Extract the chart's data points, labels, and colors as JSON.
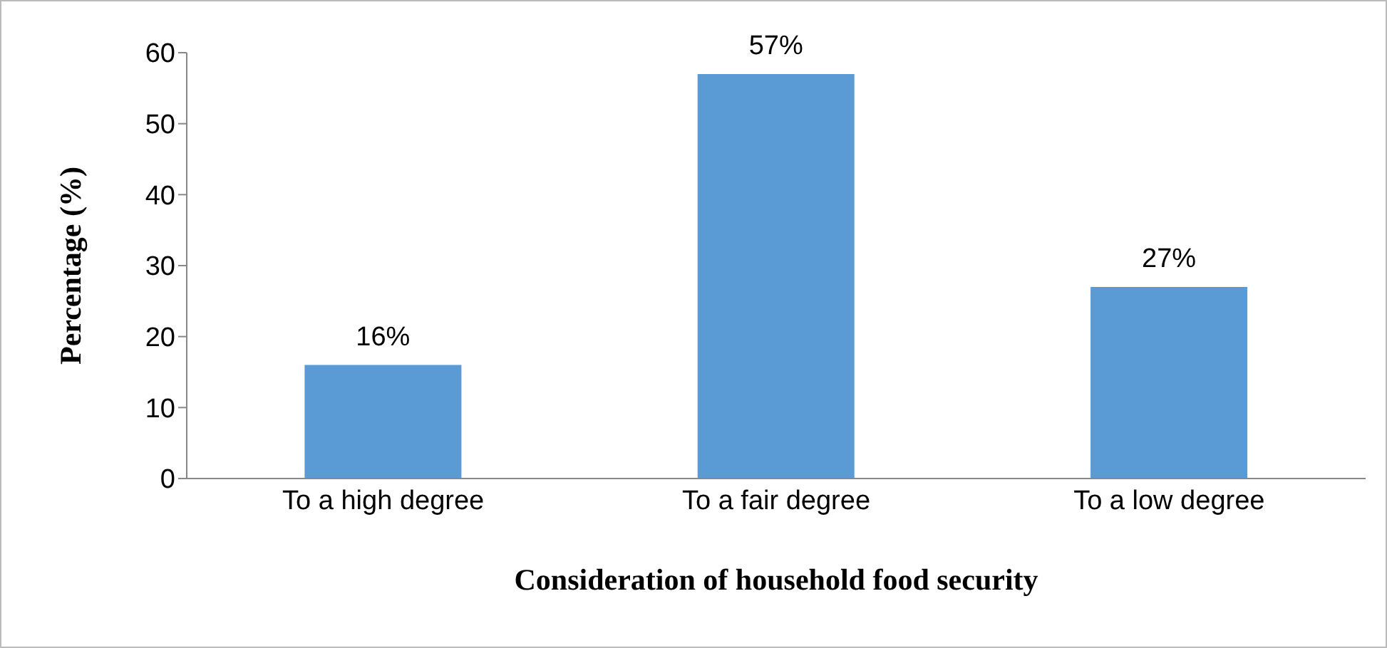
{
  "chart_data": {
    "type": "bar",
    "xlabel": "Consideration of household food security",
    "ylabel": "Percentage (%)",
    "categories": [
      "To a high degree",
      "To a fair degree",
      "To a low degree"
    ],
    "values": [
      16,
      57,
      27
    ],
    "value_labels": [
      "16%",
      "57%",
      "27%"
    ],
    "color": "#5b9bd5",
    "ylim": [
      0,
      60
    ],
    "yticks": [
      0,
      10,
      20,
      30,
      40,
      50,
      60
    ]
  }
}
